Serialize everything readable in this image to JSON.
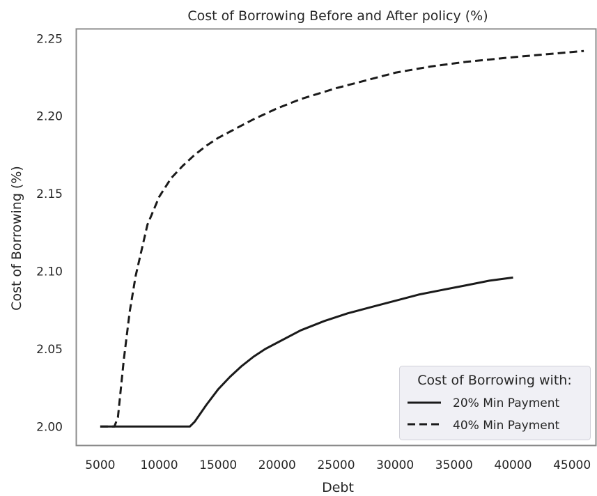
{
  "chart_data": {
    "type": "line",
    "title": "Cost of Borrowing Before and After policy (%)",
    "xlabel": "Debt",
    "ylabel": "Cost of Borrowing (%)",
    "xlim": [
      3000,
      47000
    ],
    "ylim": [
      1.988,
      2.256
    ],
    "x_ticks": [
      5000,
      10000,
      15000,
      20000,
      25000,
      30000,
      35000,
      40000,
      45000
    ],
    "y_ticks": [
      2.0,
      2.05,
      2.1,
      2.15,
      2.2,
      2.25
    ],
    "y_tick_labels": [
      "2.00",
      "2.05",
      "2.10",
      "2.15",
      "2.20",
      "2.25"
    ],
    "grid": false,
    "legend": {
      "title": "Cost of Borrowing with:",
      "placement": "bottom-right"
    },
    "series": [
      {
        "name": "20% Min Payment",
        "style": "solid",
        "color": "#1a1a1a",
        "x": [
          5000,
          6000,
          8000,
          10000,
          12000,
          12600,
          13000,
          14000,
          15000,
          16000,
          17000,
          18000,
          19000,
          20000,
          22000,
          24000,
          26000,
          28000,
          30000,
          32000,
          34000,
          36000,
          38000,
          40000
        ],
        "y": [
          2.0,
          2.0,
          2.0,
          2.0,
          2.0,
          2.0,
          2.003,
          2.014,
          2.024,
          2.032,
          2.039,
          2.045,
          2.05,
          2.054,
          2.062,
          2.068,
          2.073,
          2.077,
          2.081,
          2.085,
          2.088,
          2.091,
          2.094,
          2.096
        ]
      },
      {
        "name": "40% Min Payment",
        "style": "dashed",
        "color": "#1a1a1a",
        "x": [
          5000,
          6200,
          6500,
          7000,
          7500,
          8000,
          9000,
          10000,
          11000,
          12000,
          13000,
          14000,
          15000,
          16000,
          17000,
          18000,
          20000,
          22000,
          25000,
          28000,
          30000,
          33000,
          36000,
          40000,
          43000,
          46000
        ],
        "y": [
          2.0,
          2.0,
          2.006,
          2.043,
          2.074,
          2.097,
          2.13,
          2.148,
          2.16,
          2.168,
          2.175,
          2.181,
          2.186,
          2.19,
          2.194,
          2.198,
          2.205,
          2.211,
          2.218,
          2.224,
          2.228,
          2.232,
          2.235,
          2.238,
          2.24,
          2.242
        ]
      }
    ]
  }
}
